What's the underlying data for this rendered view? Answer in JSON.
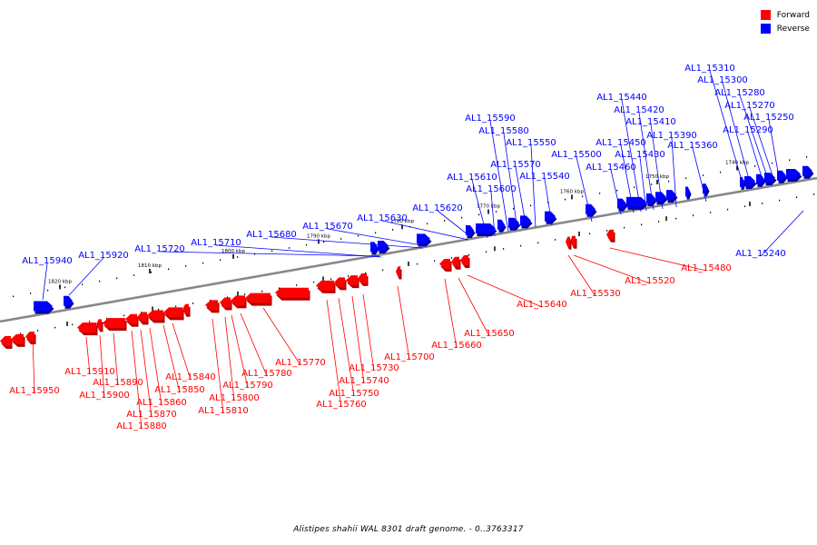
{
  "legend": {
    "forward_label": "Forward",
    "reverse_label": "Reverse",
    "forward_color": "#ff0000",
    "reverse_color": "#0000ff"
  },
  "caption": "Alistipes shahii WAL 8301 draft genome. - 0..3763317",
  "colors": {
    "backbone": "#888888",
    "forward": "#ff0000",
    "reverse": "#0000ff",
    "forward_dark": "#b30000",
    "reverse_dark": "#0000a8"
  },
  "scale_labels": [
    "1820 kbp",
    "1810 kbp",
    "1800 kbp",
    "1790 kbp",
    "1780 kbp",
    "1770 kbp",
    "1760 kbp",
    "1750 kbp",
    "1740 kbp"
  ],
  "genes_reverse": [
    "AL1_15940",
    "AL1_15920",
    "AL1_15720",
    "AL1_15710",
    "AL1_15680",
    "AL1_15670",
    "AL1_15630",
    "AL1_15620",
    "AL1_15610",
    "AL1_15600",
    "AL1_15590",
    "AL1_15580",
    "AL1_15570",
    "AL1_15550",
    "AL1_15540",
    "AL1_15500",
    "AL1_15460",
    "AL1_15450",
    "AL1_15440",
    "AL1_15430",
    "AL1_15420",
    "AL1_15410",
    "AL1_15390",
    "AL1_15360",
    "AL1_15310",
    "AL1_15300",
    "AL1_15290",
    "AL1_15280",
    "AL1_15270",
    "AL1_15250",
    "AL1_15240"
  ],
  "genes_forward": [
    "AL1_15950",
    "AL1_15910",
    "AL1_15900",
    "AL1_15890",
    "AL1_15880",
    "AL1_15870",
    "AL1_15860",
    "AL1_15850",
    "AL1_15840",
    "AL1_15810",
    "AL1_15800",
    "AL1_15790",
    "AL1_15780",
    "AL1_15770",
    "AL1_15760",
    "AL1_15750",
    "AL1_15740",
    "AL1_15730",
    "AL1_15700",
    "AL1_15660",
    "AL1_15650",
    "AL1_15640",
    "AL1_15530",
    "AL1_15520",
    "AL1_15480"
  ]
}
